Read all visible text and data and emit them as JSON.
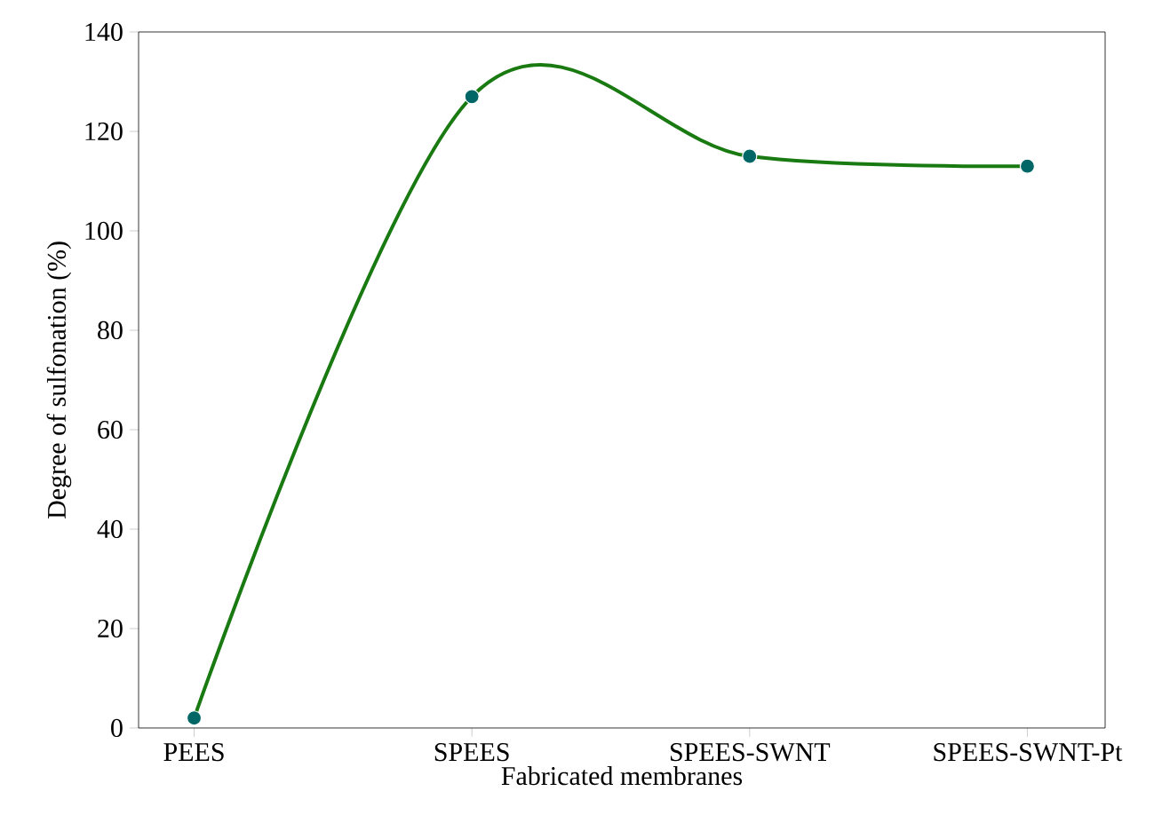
{
  "chart_data": {
    "type": "line",
    "xlabel": "Fabricated membranes",
    "ylabel": "Degree of sulfonation (%)",
    "categories": [
      "PEES",
      "SPEES",
      "SPEES-SWNT",
      "SPEES-SWNT-Pt"
    ],
    "series": [
      {
        "color": "#1a7a12",
        "values": [
          2,
          127,
          115,
          113
        ]
      }
    ],
    "marker": "circle",
    "line_style": "solid",
    "ylim": [
      0,
      140
    ],
    "yticks": [
      0,
      20,
      40,
      60,
      80,
      100,
      120,
      140
    ]
  }
}
